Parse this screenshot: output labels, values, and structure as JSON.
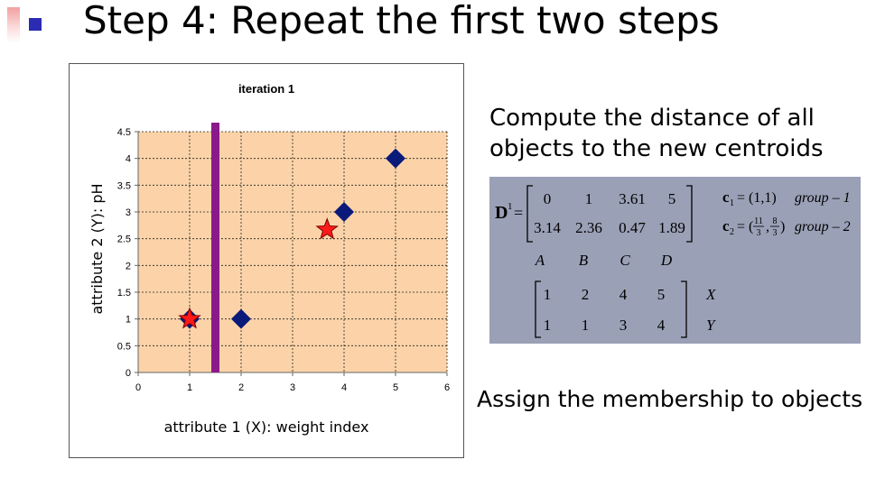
{
  "slide": {
    "title": "Step 4: Repeat the first two steps",
    "description": "Compute the distance of all objects to the new centroids",
    "assignment_text": "Assign the membership to objects"
  },
  "colors": {
    "plot_bg": "#fcd3a8",
    "objects": "#0a1a7a",
    "centroids": "#ff1a1a",
    "boundary": "#8a1a8a",
    "matrix_bg": "#9aa0b6",
    "accent": "#2b2bb4"
  },
  "chart_data": {
    "type": "scatter",
    "title": "iteration 1",
    "xlabel": "attribute 1 (X): weight index",
    "ylabel": "attribute 2 (Y): pH",
    "xlim": [
      0,
      6
    ],
    "ylim": [
      0,
      4.5
    ],
    "x_ticks": [
      "0",
      "1",
      "2",
      "3",
      "4",
      "5",
      "6"
    ],
    "y_ticks": [
      "0",
      "0.5",
      "1",
      "1.5",
      "2",
      "2.5",
      "3",
      "3.5",
      "4",
      "4.5"
    ],
    "grid": true,
    "legend": "none",
    "series": [
      {
        "marker": "diamond",
        "points": [
          [
            1,
            1
          ],
          [
            2,
            1
          ],
          [
            4,
            3
          ],
          [
            5,
            4
          ]
        ]
      },
      {
        "marker": "star",
        "points": [
          [
            1,
            1
          ],
          [
            3.67,
            2.67
          ]
        ]
      }
    ],
    "boundary_x": 1.5
  },
  "matrix": {
    "label": "D",
    "superscript": "1",
    "eq": "=",
    "rows": [
      [
        "0",
        "1",
        "3.61",
        "5"
      ],
      [
        "3.14",
        "2.36",
        "0.47",
        "1.89"
      ]
    ],
    "centroids": [
      {
        "sym": "c",
        "sub": "1",
        "value": "= (1,1)",
        "group": "group – 1"
      },
      {
        "sym": "c",
        "sub": "2",
        "value_prefix": "= (",
        "f1_num": "11",
        "f1_den": "3",
        "sep": ",",
        "f2_num": "8",
        "f2_den": "3",
        "value_suffix": ")",
        "group": "group – 2"
      }
    ],
    "object_labels": [
      "A",
      "B",
      "C",
      "D"
    ],
    "coords": [
      [
        "1",
        "2",
        "4",
        "5"
      ],
      [
        "1",
        "1",
        "3",
        "4"
      ]
    ],
    "coord_labels": [
      "X",
      "Y"
    ]
  }
}
